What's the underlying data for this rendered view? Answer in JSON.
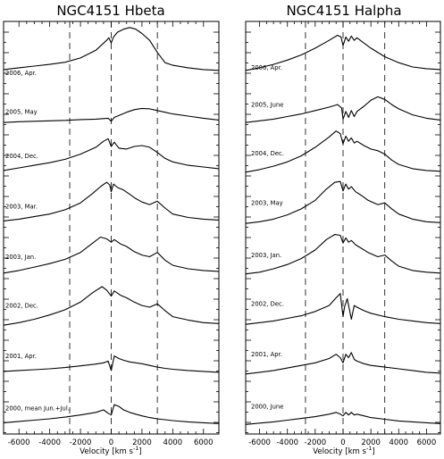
{
  "chart_data": [
    {
      "type": "line",
      "title": "NGC4151 Hbeta",
      "xlabel": "Velocity [km s",
      "xlabel_exp": "-1",
      "xlabel_end": "]",
      "xlim": [
        -7000,
        7000
      ],
      "xticks": [
        "-6000",
        "-4000",
        "-2000",
        "0",
        "2000",
        "4000",
        "6000"
      ],
      "vlines": [
        -2700,
        0,
        3000
      ],
      "series": [
        {
          "name": "2006, Apr.",
          "x": [
            -7000,
            -6000,
            -5000,
            -4000,
            -3000,
            -2000,
            -1000,
            -300,
            -150,
            0,
            150,
            400,
            800,
            1200,
            1600,
            2000,
            2500,
            3000,
            3500,
            4000,
            5000,
            6000,
            7000
          ],
          "y": [
            0.18,
            0.22,
            0.26,
            0.3,
            0.35,
            0.45,
            0.63,
            0.86,
            0.92,
            0.8,
            0.94,
            1.05,
            1.12,
            1.16,
            1.12,
            1.02,
            0.86,
            0.58,
            0.34,
            0.28,
            0.22,
            0.18,
            0.16
          ]
        },
        {
          "name": "2005, May",
          "x": [
            -7000,
            -6000,
            -5000,
            -4000,
            -3000,
            -2000,
            -1000,
            -200,
            0,
            200,
            600,
            1000,
            1500,
            2000,
            2500,
            3000,
            3500,
            4000,
            5000,
            6000,
            7000
          ],
          "y": [
            0.12,
            0.14,
            0.15,
            0.16,
            0.17,
            0.19,
            0.2,
            0.22,
            0.15,
            0.24,
            0.3,
            0.36,
            0.42,
            0.45,
            0.44,
            0.4,
            0.36,
            0.32,
            0.27,
            0.22,
            0.18
          ]
        },
        {
          "name": "2004, Dec.",
          "x": [
            -7000,
            -6000,
            -5000,
            -4000,
            -3000,
            -2000,
            -1000,
            -500,
            -200,
            0,
            200,
            500,
            1000,
            1500,
            2000,
            2500,
            3000,
            3500,
            4000,
            5000,
            6000,
            7000
          ],
          "y": [
            0.18,
            0.24,
            0.3,
            0.36,
            0.44,
            0.56,
            0.72,
            0.86,
            0.92,
            0.74,
            0.84,
            0.7,
            0.68,
            0.74,
            0.76,
            0.72,
            0.6,
            0.46,
            0.38,
            0.3,
            0.26,
            0.22
          ]
        },
        {
          "name": "2003, Mar.",
          "x": [
            -7000,
            -6000,
            -5000,
            -4000,
            -3000,
            -2000,
            -1200,
            -700,
            -300,
            -100,
            0,
            150,
            400,
            800,
            1200,
            1600,
            2000,
            2500,
            3000,
            3500,
            4000,
            5000,
            6000,
            7000
          ],
          "y": [
            0.18,
            0.22,
            0.28,
            0.34,
            0.44,
            0.6,
            0.82,
            0.98,
            1.08,
            1.02,
            0.86,
            1.04,
            0.96,
            0.9,
            0.8,
            0.7,
            0.62,
            0.56,
            0.64,
            0.48,
            0.34,
            0.26,
            0.22,
            0.2
          ]
        },
        {
          "name": "2003, Jan.",
          "x": [
            -7000,
            -6000,
            -5000,
            -4000,
            -3000,
            -2000,
            -1200,
            -700,
            -300,
            0,
            200,
            600,
            1000,
            1500,
            2000,
            2500,
            3000,
            3500,
            4000,
            5000,
            6000,
            7000
          ],
          "y": [
            0.14,
            0.2,
            0.28,
            0.36,
            0.46,
            0.62,
            0.84,
            0.98,
            0.94,
            0.86,
            0.92,
            0.82,
            0.76,
            0.64,
            0.56,
            0.52,
            0.62,
            0.44,
            0.32,
            0.24,
            0.2,
            0.18
          ]
        },
        {
          "name": "2002, Dec.",
          "x": [
            -7000,
            -6000,
            -5000,
            -4000,
            -3000,
            -2000,
            -1200,
            -600,
            -300,
            0,
            200,
            600,
            1000,
            1500,
            2000,
            2500,
            3000,
            3500,
            4000,
            5000,
            6000,
            7000
          ],
          "y": [
            0.1,
            0.16,
            0.24,
            0.34,
            0.46,
            0.64,
            0.86,
            1.0,
            0.92,
            0.78,
            0.9,
            0.8,
            0.74,
            0.64,
            0.56,
            0.52,
            0.6,
            0.44,
            0.3,
            0.22,
            0.16,
            0.14
          ]
        },
        {
          "name": "2001, Apr.",
          "x": [
            -7000,
            -6000,
            -5000,
            -4000,
            -3000,
            -2000,
            -1000,
            -500,
            -200,
            0,
            200,
            500,
            800,
            1200,
            1600,
            2000,
            2500,
            3000,
            3500,
            4000,
            5000,
            6000,
            7000
          ],
          "y": [
            0.2,
            0.22,
            0.24,
            0.26,
            0.29,
            0.33,
            0.37,
            0.4,
            0.44,
            0.22,
            0.56,
            0.5,
            0.46,
            0.42,
            0.4,
            0.38,
            0.34,
            0.3,
            0.27,
            0.25,
            0.22,
            0.2,
            0.18
          ]
        },
        {
          "name": "2000, mean Jun.+Jul.",
          "x": [
            -7000,
            -6000,
            -5000,
            -4000,
            -3000,
            -2000,
            -1000,
            -500,
            -200,
            0,
            200,
            500,
            800,
            1200,
            1600,
            2000,
            2500,
            3000,
            3500,
            4000,
            5000,
            6000,
            7000
          ],
          "y": [
            0.18,
            0.21,
            0.24,
            0.27,
            0.31,
            0.36,
            0.42,
            0.48,
            0.4,
            0.36,
            0.6,
            0.56,
            0.48,
            0.42,
            0.38,
            0.34,
            0.3,
            0.27,
            0.25,
            0.23,
            0.2,
            0.18,
            0.16
          ]
        }
      ]
    },
    {
      "type": "line",
      "title": "NGC4151 Halpha",
      "xlabel": "Velocity [km s",
      "xlabel_exp": "-1",
      "xlabel_end": "]",
      "xlim": [
        -7000,
        7000
      ],
      "xticks": [
        "-6000",
        "-4000",
        "-2000",
        "0",
        "2000",
        "4000",
        "6000"
      ],
      "vlines": [
        -2700,
        0,
        3000
      ],
      "series": [
        {
          "name": "2006, Apr.",
          "x": [
            -7000,
            -6000,
            -5000,
            -4000,
            -3000,
            -2000,
            -1000,
            -400,
            -150,
            0,
            200,
            400,
            600,
            800,
            1000,
            1400,
            2000,
            3000,
            4000,
            5000,
            6000,
            7000
          ],
          "y": [
            0.16,
            0.22,
            0.3,
            0.4,
            0.52,
            0.68,
            0.86,
            0.98,
            0.94,
            0.74,
            0.94,
            0.84,
            0.96,
            0.86,
            0.92,
            0.82,
            0.68,
            0.48,
            0.34,
            0.24,
            0.2,
            0.18
          ]
        },
        {
          "name": "2005, June",
          "x": [
            -7000,
            -6000,
            -5000,
            -4000,
            -3000,
            -2000,
            -1000,
            -400,
            -100,
            0,
            200,
            400,
            600,
            800,
            1000,
            1500,
            2000,
            2500,
            3000,
            3500,
            4000,
            5000,
            6000,
            7000
          ],
          "y": [
            0.12,
            0.16,
            0.2,
            0.26,
            0.32,
            0.4,
            0.48,
            0.54,
            0.46,
            0.2,
            0.38,
            0.24,
            0.4,
            0.26,
            0.38,
            0.5,
            0.64,
            0.72,
            0.66,
            0.54,
            0.44,
            0.3,
            0.22,
            0.18
          ]
        },
        {
          "name": "2004, Dec.",
          "x": [
            -7000,
            -6000,
            -5000,
            -4000,
            -3000,
            -2000,
            -1000,
            -500,
            -200,
            0,
            200,
            400,
            600,
            800,
            1000,
            1500,
            2000,
            2500,
            3000,
            3500,
            4000,
            5000,
            6000,
            7000
          ],
          "y": [
            0.14,
            0.2,
            0.28,
            0.38,
            0.52,
            0.72,
            0.96,
            1.1,
            1.04,
            0.8,
            0.98,
            0.86,
            0.94,
            0.82,
            0.86,
            0.76,
            0.68,
            0.64,
            0.56,
            0.42,
            0.32,
            0.22,
            0.18,
            0.16
          ]
        },
        {
          "name": "2003, May",
          "x": [
            -7000,
            -6000,
            -5000,
            -4000,
            -3000,
            -2000,
            -1200,
            -600,
            -200,
            0,
            200,
            400,
            600,
            900,
            1300,
            1800,
            2500,
            3000,
            3500,
            4000,
            5000,
            6000,
            7000
          ],
          "y": [
            0.12,
            0.16,
            0.22,
            0.32,
            0.46,
            0.66,
            0.92,
            1.08,
            1.1,
            0.88,
            1.04,
            0.92,
            0.98,
            0.86,
            0.78,
            0.66,
            0.56,
            0.6,
            0.46,
            0.34,
            0.22,
            0.16,
            0.14
          ]
        },
        {
          "name": "2003, Jan.",
          "x": [
            -7000,
            -6000,
            -5000,
            -4000,
            -3000,
            -2000,
            -1200,
            -600,
            -200,
            0,
            200,
            400,
            600,
            900,
            1300,
            1800,
            2500,
            3000,
            3500,
            4000,
            5000,
            6000,
            7000
          ],
          "y": [
            0.12,
            0.16,
            0.24,
            0.34,
            0.48,
            0.68,
            0.92,
            1.04,
            1.02,
            0.84,
            0.96,
            0.86,
            0.9,
            0.8,
            0.72,
            0.62,
            0.52,
            0.56,
            0.42,
            0.3,
            0.2,
            0.16,
            0.14
          ]
        },
        {
          "name": "2002, Dec.",
          "x": [
            -7000,
            -6000,
            -5000,
            -4000,
            -3000,
            -2000,
            -1000,
            -500,
            -200,
            0,
            100,
            300,
            600,
            800,
            1000,
            1500,
            2000,
            3000,
            4000,
            5000,
            6000,
            7000
          ],
          "y": [
            0.12,
            0.16,
            0.2,
            0.26,
            0.32,
            0.42,
            0.56,
            0.74,
            0.84,
            0.3,
            0.52,
            0.72,
            0.24,
            0.56,
            0.52,
            0.44,
            0.38,
            0.3,
            0.24,
            0.2,
            0.16,
            0.14
          ]
        },
        {
          "name": "2001, Apr.",
          "x": [
            -7000,
            -6000,
            -5000,
            -4000,
            -3000,
            -2000,
            -1000,
            -500,
            -200,
            0,
            200,
            400,
            600,
            800,
            1000,
            1500,
            2000,
            3000,
            4000,
            5000,
            6000,
            7000
          ],
          "y": [
            0.14,
            0.18,
            0.22,
            0.28,
            0.34,
            0.4,
            0.5,
            0.6,
            0.52,
            0.4,
            0.6,
            0.52,
            0.64,
            0.48,
            0.44,
            0.38,
            0.34,
            0.3,
            0.26,
            0.22,
            0.18,
            0.16
          ]
        },
        {
          "name": "2000, June",
          "x": [
            -7000,
            -6000,
            -5000,
            -4000,
            -3000,
            -2000,
            -1000,
            -500,
            -200,
            0,
            200,
            400,
            600,
            800,
            1000,
            1500,
            2000,
            3000,
            4000,
            5000,
            6000,
            7000
          ],
          "y": [
            0.14,
            0.17,
            0.2,
            0.24,
            0.28,
            0.32,
            0.38,
            0.42,
            0.38,
            0.34,
            0.42,
            0.36,
            0.42,
            0.36,
            0.38,
            0.34,
            0.3,
            0.26,
            0.22,
            0.2,
            0.18,
            0.16
          ]
        }
      ]
    }
  ]
}
